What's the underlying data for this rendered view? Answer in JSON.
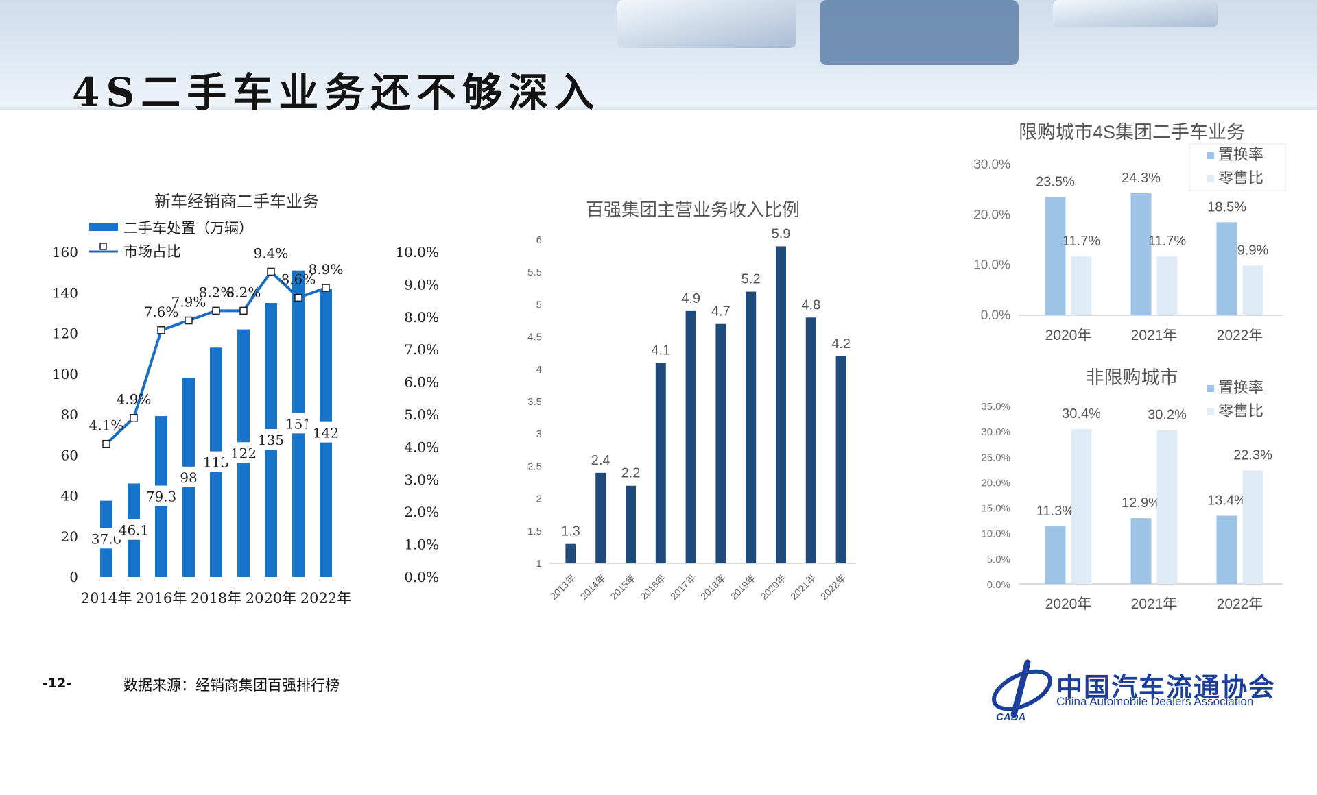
{
  "slide": {
    "title": "4S二手车业务还不够深入",
    "page_number": "-12-",
    "source_note": "数据来源：经销商集团百强排行榜",
    "org_name_cn": "中国汽车流通协会",
    "org_name_en": "China Automobile Dealers Association",
    "logo_text": "CADA"
  },
  "colors": {
    "bar_blue": "#1874c8",
    "line_blue": "#1a6fc4",
    "bar_navy": "#1e4b7c",
    "bar_light": "#9dc3e6",
    "bar_pale": "#ddebf7",
    "logo_blue": "#1c3f9a"
  },
  "chart_data": [
    {
      "type": "bar",
      "title": "新车经销商二手车业务",
      "categories": [
        "2014年",
        "2015年",
        "2016年",
        "2017年",
        "2018年",
        "2019年",
        "2020年",
        "2021年",
        "2022年"
      ],
      "x_tick_labels": [
        "2014年",
        "2016年",
        "2018年",
        "2020年",
        "2022年"
      ],
      "series": [
        {
          "name": "二手车处置（万辆）",
          "type": "bar",
          "axis": "left",
          "values": [
            37.6,
            46.1,
            79.3,
            98,
            113,
            122,
            135,
            151,
            142
          ],
          "labels": [
            "37.6",
            "46.1",
            "79.3",
            "98",
            "113",
            "122",
            "135",
            "151",
            "142"
          ]
        },
        {
          "name": "市场占比",
          "type": "line",
          "axis": "right",
          "values": [
            4.1,
            4.9,
            7.6,
            7.9,
            8.2,
            8.2,
            9.4,
            8.6,
            8.9
          ],
          "labels": [
            "4.1%",
            "4.9%",
            "7.6%",
            "7.9%",
            "8.2%",
            "8.2%",
            "9.4%",
            "8.6%",
            "8.9%"
          ]
        }
      ],
      "y_left": {
        "min": 0,
        "max": 160,
        "ticks": [
          "0",
          "20",
          "40",
          "60",
          "80",
          "100",
          "120",
          "140",
          "160"
        ]
      },
      "y_right": {
        "min": 0,
        "max": 10,
        "ticks": [
          "0.0%",
          "1.0%",
          "2.0%",
          "3.0%",
          "4.0%",
          "5.0%",
          "6.0%",
          "7.0%",
          "8.0%",
          "9.0%",
          "10.0%"
        ]
      },
      "legend": "top-left"
    },
    {
      "type": "bar",
      "title": "百强集团主营业务收入比例",
      "categories": [
        "2013年",
        "2014年",
        "2015年",
        "2016年",
        "2017年",
        "2018年",
        "2019年",
        "2020年",
        "2021年",
        "2022年"
      ],
      "values": [
        1.3,
        2.4,
        2.2,
        4.1,
        4.9,
        4.7,
        5.2,
        5.9,
        4.8,
        4.2
      ],
      "labels": [
        "1.3",
        "2.4",
        "2.2",
        "4.1",
        "4.9",
        "4.7",
        "5.2",
        "5.9",
        "4.8",
        "4.2"
      ],
      "ylim": [
        1,
        6
      ],
      "y_ticks": [
        "1",
        "1.5",
        "2",
        "2.5",
        "3",
        "3.5",
        "4",
        "4.5",
        "5",
        "5.5",
        "6"
      ]
    },
    {
      "type": "bar",
      "title": "限购城市4S集团二手车业务",
      "categories": [
        "2020年",
        "2021年",
        "2022年"
      ],
      "series": [
        {
          "name": "置换率",
          "values": [
            23.5,
            24.3,
            18.5
          ],
          "labels": [
            "23.5%",
            "24.3%",
            "18.5%"
          ]
        },
        {
          "name": "零售比",
          "values": [
            11.7,
            11.7,
            9.9
          ],
          "labels": [
            "11.7%",
            "11.7%",
            "9.9%"
          ]
        }
      ],
      "ylim": [
        0,
        30
      ],
      "y_ticks": [
        "0.0%",
        "10.0%",
        "20.0%",
        "30.0%"
      ],
      "legend": "top-right"
    },
    {
      "type": "bar",
      "title": "非限购城市",
      "categories": [
        "2020年",
        "2021年",
        "2022年"
      ],
      "series": [
        {
          "name": "置换率",
          "values": [
            11.3,
            12.9,
            13.4
          ],
          "labels": [
            "11.3%",
            "12.9%",
            "13.4%"
          ]
        },
        {
          "name": "零售比",
          "values": [
            30.4,
            30.2,
            22.3
          ],
          "labels": [
            "30.4%",
            "30.2%",
            "22.3%"
          ]
        }
      ],
      "ylim": [
        0,
        35
      ],
      "y_ticks": [
        "0.0%",
        "5.0%",
        "10.0%",
        "15.0%",
        "20.0%",
        "25.0%",
        "30.0%",
        "35.0%"
      ],
      "legend": "top-right"
    }
  ]
}
